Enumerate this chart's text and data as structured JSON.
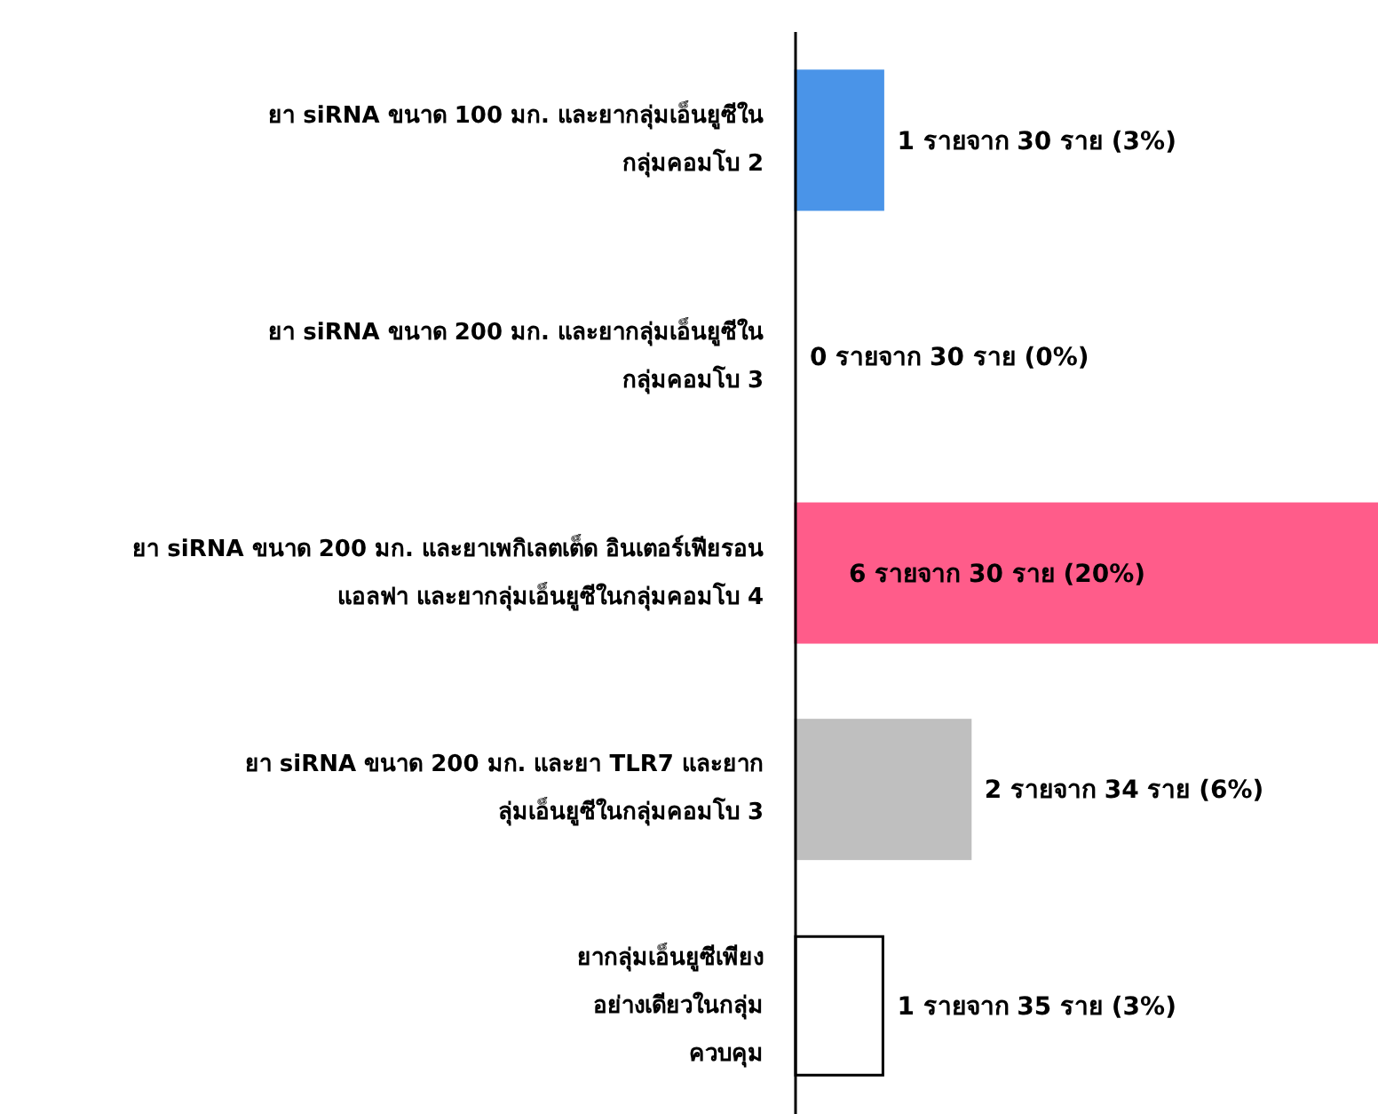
{
  "chart_data": {
    "type": "bar",
    "orientation": "horizontal",
    "categories": [
      "ยา siRNA ขนาด 100 มก. และยากลุ่มเอ็นยูซีในกลุ่มคอมโบ 2",
      "ยา siRNA ขนาด 200 มก. และยากลุ่มเอ็นยูซีในกลุ่มคอมโบ 3",
      "ยา siRNA ขนาด 200 มก. และยาเพกิเลตเต็ด อินเตอร์เฟียรอน แอลฟา และยากลุ่มเอ็นยูซีในกลุ่มคอมโบ 4",
      "ยา siRNA ขนาด 200 มก. และยา TLR7 และยากลุ่มเอ็นยูซีในกลุ่มคอมโบ 3",
      "ยากลุ่มเอ็นยูซีเพียงอย่างเดียวในกลุ่มควบคุม"
    ],
    "values": [
      3,
      0,
      20,
      6,
      3
    ],
    "value_labels": [
      "1 รายจาก 30 ราย (3%)",
      "0 รายจาก 30 ราย (0%)",
      "6 รายจาก 30 ราย (20%)",
      "2 รายจาก 34 ราย (6%)",
      "1 รายจาก 35 ราย (3%)"
    ],
    "colors": [
      "#4a94e8",
      "#ffffff",
      "#ff5c8a",
      "#bfbfbf",
      "#ffffff"
    ],
    "data_labels": false
  }
}
